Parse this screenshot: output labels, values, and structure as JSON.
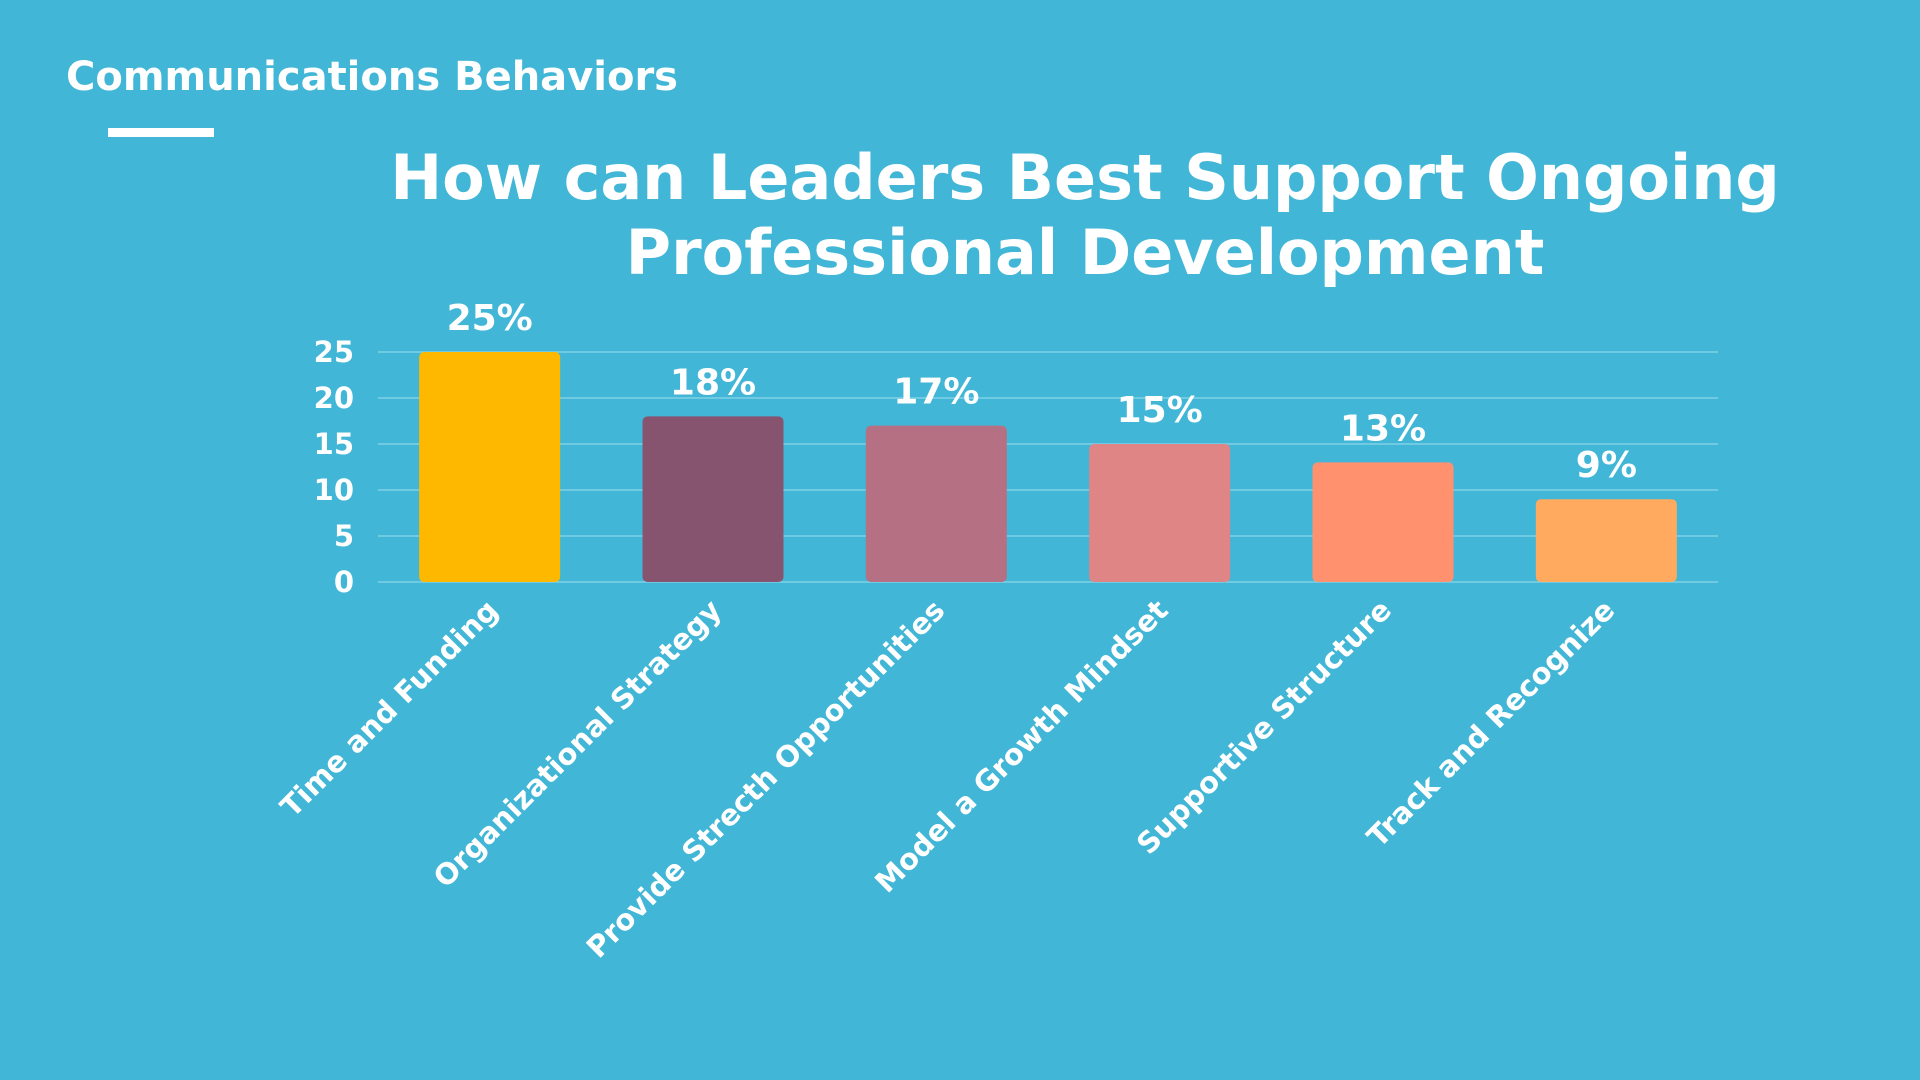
{
  "slide": {
    "section_label": "Communications Behaviors",
    "title_line1": "How can Leaders Best Support Ongoing",
    "title_line2": "Professional Development"
  },
  "colors": {
    "background": "#42b6d6",
    "text": "#ffffff",
    "gridline": "#7fd2e6"
  },
  "chart_data": {
    "type": "bar",
    "title": "How can Leaders Best Support Ongoing Professional Development",
    "xlabel": "",
    "ylabel": "",
    "ylim": [
      0,
      25
    ],
    "yticks": [
      0,
      5,
      10,
      15,
      20,
      25
    ],
    "grid": true,
    "legend": "none",
    "categories": [
      "Time and Funding",
      "Organizational Strategy",
      "Provide Strecth Opportunities",
      "Model a Growth Mindset",
      "Supportive Structure",
      "Track and Recognize"
    ],
    "values": [
      25,
      18,
      17,
      15,
      13,
      9
    ],
    "data_labels": [
      "25%",
      "18%",
      "17%",
      "15%",
      "13%",
      "9%"
    ],
    "bar_colors": [
      "#ffb800",
      "#875470",
      "#b57183",
      "#e08585",
      "#ff916f",
      "#ffaa5f"
    ]
  }
}
